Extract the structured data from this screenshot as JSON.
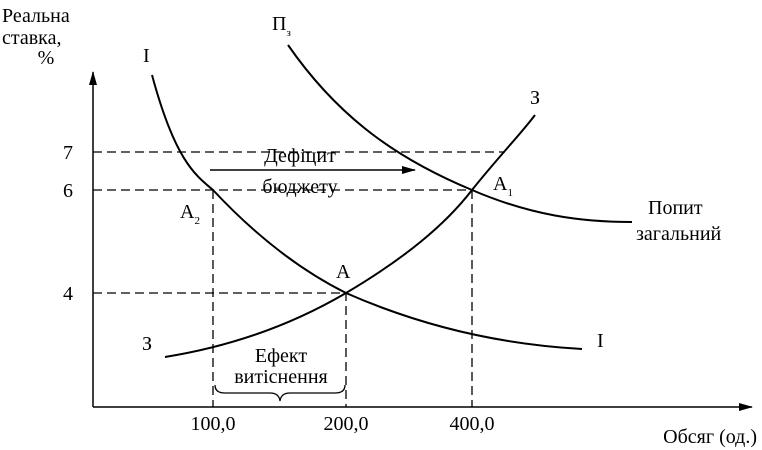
{
  "axes": {
    "y_label": [
      "Реальна",
      "ставка,",
      "%"
    ],
    "x_label": "Обсяг (од.)",
    "y_ticks": [
      "7",
      "6",
      "4"
    ],
    "x_ticks": [
      "100,0",
      "200,0",
      "400,0"
    ]
  },
  "curves": {
    "investment": [
      "I",
      "I"
    ],
    "savings": [
      "З",
      "З"
    ],
    "demand": {
      "letter": "П",
      "sub": "з"
    },
    "demand_label": [
      "Попит",
      "загальний"
    ]
  },
  "points": [
    {
      "letter": "А",
      "sub": "2"
    },
    {
      "letter": "А",
      "sub": ""
    },
    {
      "letter": "А",
      "sub": "1"
    }
  ],
  "annotations": {
    "deficit": [
      "Дефіцит",
      "бюджету"
    ],
    "crowding_out": [
      "Ефект",
      "витіснення"
    ]
  }
}
